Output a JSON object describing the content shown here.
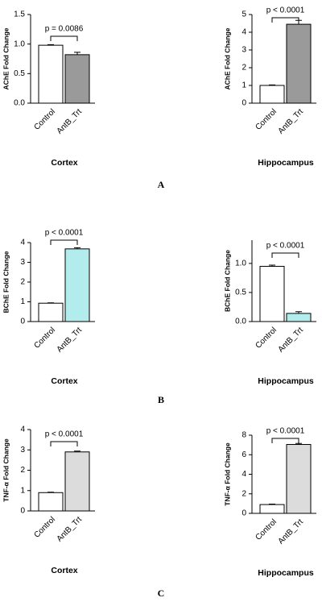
{
  "chart_data": [
    {
      "type": "bar",
      "title": "Cortex",
      "ylabel": "AChE Fold Change",
      "annotation": "p = 0.0086",
      "categories": [
        "Control",
        "AntB_Trt"
      ],
      "values": [
        0.98,
        0.82
      ],
      "errors": [
        0.01,
        0.04
      ],
      "colors": [
        "#ffffff",
        "#9a9a9a"
      ],
      "ylim": [
        0,
        1.5
      ],
      "yticks": [
        {
          "value": 0,
          "label": "0.0"
        },
        0.5,
        {
          "value": 1,
          "label": "1.0"
        },
        1.5
      ]
    },
    {
      "type": "bar",
      "title": "Hippocampus",
      "ylabel": "AChE Fold Change",
      "annotation": "p < 0.0001",
      "categories": [
        "Control",
        "AntB_Trt"
      ],
      "values": [
        1.0,
        4.45
      ],
      "errors": [
        0.03,
        0.22
      ],
      "colors": [
        "#ffffff",
        "#9a9a9a"
      ],
      "ylim": [
        0,
        5
      ],
      "yticks": [
        0,
        1,
        2,
        3,
        4,
        5
      ]
    },
    {
      "type": "bar",
      "title": "Cortex",
      "ylabel": "BChE Fold Change",
      "annotation": "p < 0.0001",
      "categories": [
        "Control",
        "AntB_Trt"
      ],
      "values": [
        0.93,
        3.68
      ],
      "errors": [
        0.02,
        0.06
      ],
      "colors": [
        "#ffffff",
        "#b3ecec"
      ],
      "ylim": [
        0,
        4
      ],
      "yticks": [
        0,
        1,
        2,
        3,
        4
      ]
    },
    {
      "type": "bar",
      "title": "Hippocampus",
      "ylabel": "BChE Fold Change",
      "annotation": "p < 0.0001",
      "categories": [
        "Control",
        "AntB_Trt"
      ],
      "values": [
        0.95,
        0.14
      ],
      "errors": [
        0.02,
        0.03
      ],
      "colors": [
        "#ffffff",
        "#b3ecec"
      ],
      "ylim": [
        0,
        1.4
      ],
      "yticks": [
        {
          "value": 0,
          "label": "0.0"
        },
        0.5,
        {
          "value": 1,
          "label": "1.0"
        }
      ]
    },
    {
      "type": "bar",
      "title": "Cortex",
      "ylabel": "TNF-α Fold Change",
      "annotation": "p < 0.0001",
      "categories": [
        "Control",
        "AntB_Trt"
      ],
      "values": [
        0.9,
        2.9
      ],
      "errors": [
        0.02,
        0.04
      ],
      "colors": [
        "#ffffff",
        "#dcdcdc"
      ],
      "ylim": [
        0,
        4
      ],
      "yticks": [
        0,
        1,
        2,
        3,
        4
      ]
    },
    {
      "type": "bar",
      "title": "Hippocampus",
      "ylabel": "TNF-α Fold Change",
      "annotation": "p < 0.0001",
      "categories": [
        "Control",
        "AntB_Trt"
      ],
      "values": [
        0.9,
        7.05
      ],
      "errors": [
        0.05,
        0.1
      ],
      "colors": [
        "#ffffff",
        "#dcdcdc"
      ],
      "ylim": [
        0,
        8
      ],
      "yticks": [
        0,
        2,
        4,
        6,
        8
      ]
    }
  ],
  "panel_labels": [
    "A",
    "B",
    "C"
  ]
}
